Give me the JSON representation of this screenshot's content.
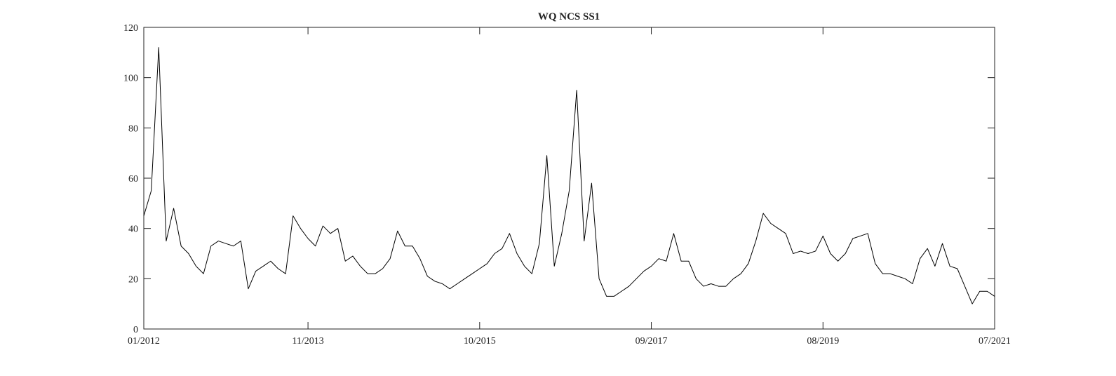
{
  "chart_data": {
    "type": "line",
    "title": "WQ NCS SS1",
    "x": [
      "01/2012",
      "02/2012",
      "03/2012",
      "04/2012",
      "05/2012",
      "06/2012",
      "07/2012",
      "08/2012",
      "09/2012",
      "10/2012",
      "11/2012",
      "12/2012",
      "01/2013",
      "02/2013",
      "03/2013",
      "04/2013",
      "05/2013",
      "06/2013",
      "07/2013",
      "08/2013",
      "09/2013",
      "10/2013",
      "11/2013",
      "12/2013",
      "01/2014",
      "02/2014",
      "03/2014",
      "04/2014",
      "05/2014",
      "06/2014",
      "07/2014",
      "08/2014",
      "09/2014",
      "10/2014",
      "11/2014",
      "12/2014",
      "01/2015",
      "02/2015",
      "03/2015",
      "04/2015",
      "05/2015",
      "06/2015",
      "07/2015",
      "08/2015",
      "09/2015",
      "10/2015",
      "11/2015",
      "12/2015",
      "01/2016",
      "02/2016",
      "03/2016",
      "04/2016",
      "05/2016",
      "06/2016",
      "07/2016",
      "08/2016",
      "09/2016",
      "10/2016",
      "11/2016",
      "12/2016",
      "01/2017",
      "02/2017",
      "03/2017",
      "04/2017",
      "05/2017",
      "06/2017",
      "07/2017",
      "08/2017",
      "09/2017",
      "10/2017",
      "11/2017",
      "12/2017",
      "01/2018",
      "02/2018",
      "03/2018",
      "04/2018",
      "05/2018",
      "06/2018",
      "07/2018",
      "08/2018",
      "09/2018",
      "10/2018",
      "11/2018",
      "12/2018",
      "01/2019",
      "02/2019",
      "03/2019",
      "04/2019",
      "05/2019",
      "06/2019",
      "07/2019",
      "08/2019",
      "09/2019",
      "10/2019",
      "11/2019",
      "12/2019",
      "01/2020",
      "02/2020",
      "03/2020",
      "04/2020",
      "05/2020",
      "06/2020",
      "07/2020",
      "08/2020",
      "09/2020",
      "10/2020",
      "11/2020",
      "12/2020",
      "01/2021",
      "02/2021",
      "03/2021",
      "04/2021",
      "05/2021",
      "06/2021",
      "07/2021"
    ],
    "series": [
      {
        "name": "SS1",
        "color": "#000000",
        "values": [
          45,
          55,
          112,
          35,
          48,
          33,
          30,
          25,
          22,
          33,
          35,
          34,
          33,
          35,
          16,
          23,
          25,
          27,
          24,
          22,
          45,
          40,
          36,
          33,
          41,
          38,
          40,
          27,
          29,
          25,
          22,
          22,
          24,
          28,
          39,
          33,
          33,
          28,
          21,
          19,
          18,
          16,
          18,
          20,
          22,
          24,
          26,
          30,
          32,
          38,
          30,
          25,
          22,
          34,
          69,
          25,
          38,
          55,
          95,
          35,
          58,
          20,
          13,
          13,
          15,
          17,
          20,
          23,
          25,
          28,
          27,
          38,
          27,
          27,
          20,
          17,
          18,
          17,
          17,
          20,
          22,
          26,
          35,
          46,
          42,
          40,
          38,
          30,
          31,
          30,
          31,
          37,
          30,
          27,
          30,
          36,
          37,
          38,
          26,
          22,
          22,
          21,
          20,
          18,
          28,
          32,
          25,
          34,
          25,
          24,
          17,
          10,
          15,
          15,
          13
        ]
      }
    ],
    "xlim": [
      "01/2012",
      "07/2021"
    ],
    "xticks": [
      "01/2012",
      "11/2013",
      "10/2015",
      "09/2017",
      "08/2019",
      "07/2021"
    ],
    "ylim": [
      0,
      120
    ],
    "yticks": [
      0,
      20,
      40,
      60,
      80,
      100,
      120
    ]
  }
}
